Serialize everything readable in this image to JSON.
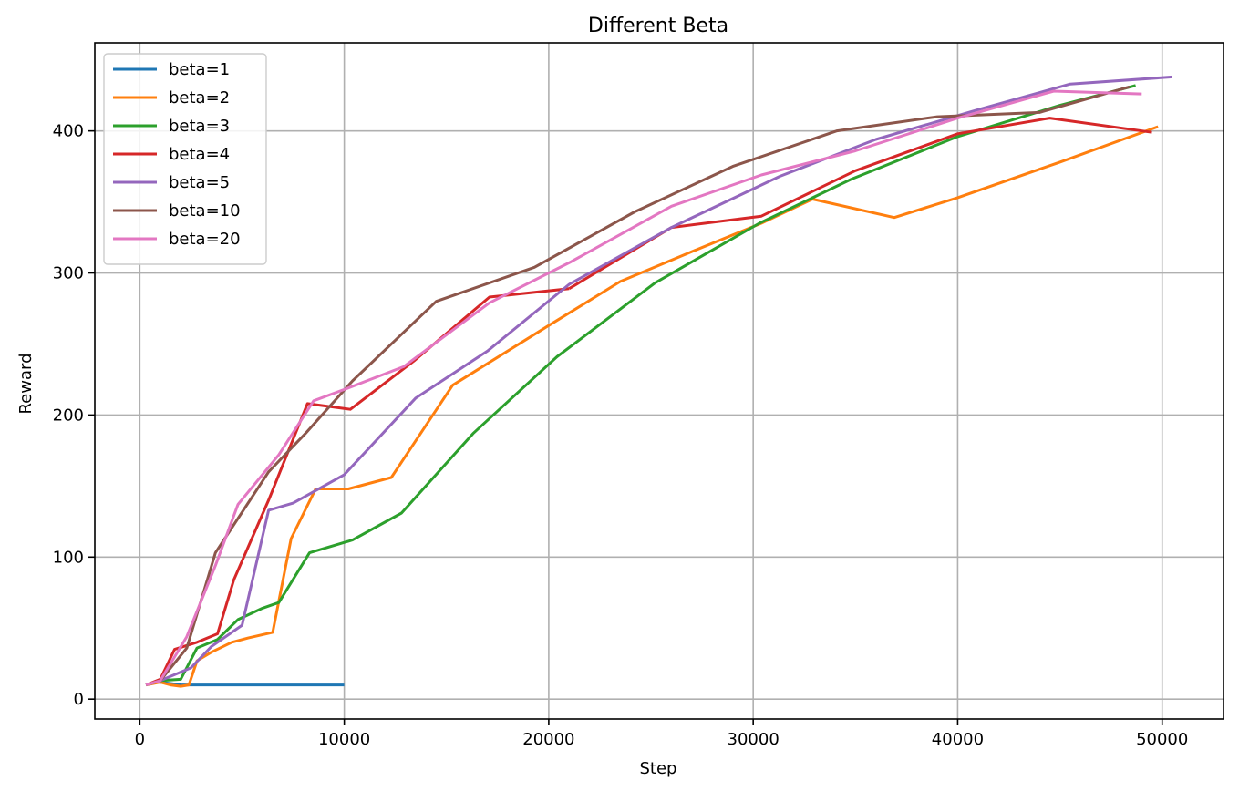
{
  "chart_data": {
    "type": "line",
    "title": "Different Beta",
    "xlabel": "Step",
    "ylabel": "Reward",
    "xlim": [
      -2200,
      53000
    ],
    "ylim": [
      -14,
      462
    ],
    "xticks": [
      0,
      10000,
      20000,
      30000,
      40000,
      50000
    ],
    "xtick_labels": [
      "0",
      "10000",
      "20000",
      "30000",
      "40000",
      "50000"
    ],
    "yticks": [
      0,
      100,
      200,
      300,
      400
    ],
    "ytick_labels": [
      "0",
      "100",
      "200",
      "300",
      "400"
    ],
    "grid": true,
    "legend_position": "top-left",
    "series": [
      {
        "name": "beta=1",
        "color": "#1f77b4",
        "x": [
          300,
          900,
          1500,
          2000,
          3000,
          4000,
          5000,
          6000,
          7000,
          8000,
          9000,
          10000
        ],
        "y": [
          10,
          12,
          11,
          10,
          10,
          10,
          10,
          10,
          10,
          10,
          10,
          10
        ]
      },
      {
        "name": "beta=2",
        "color": "#ff7f0e",
        "x": [
          300,
          1000,
          1500,
          2000,
          2400,
          2800,
          3500,
          4500,
          5300,
          6500,
          7400,
          8600,
          10200,
          12300,
          15300,
          20000,
          23500,
          27000,
          30400,
          32900,
          36900,
          40000,
          45000,
          49800
        ],
        "y": [
          10,
          12,
          10,
          9,
          10,
          27,
          33,
          40,
          43,
          47,
          113,
          148,
          148,
          156,
          221,
          263,
          294,
          315,
          335,
          352,
          339,
          353,
          378,
          403
        ]
      },
      {
        "name": "beta=3",
        "color": "#2ca02c",
        "x": [
          300,
          1000,
          2000,
          2800,
          3800,
          4800,
          6000,
          6800,
          8300,
          10400,
          12800,
          16300,
          20400,
          25200,
          30300,
          34800,
          40000,
          45000,
          48700
        ],
        "y": [
          10,
          13,
          14,
          36,
          42,
          56,
          64,
          68,
          103,
          112,
          131,
          187,
          241,
          293,
          335,
          366,
          396,
          418,
          432
        ]
      },
      {
        "name": "beta=4",
        "color": "#d62728",
        "x": [
          300,
          1000,
          1700,
          2800,
          3800,
          4600,
          6300,
          8200,
          10300,
          13400,
          17100,
          21000
        ],
        "y": [
          10,
          14,
          35,
          40,
          46,
          84,
          140,
          208,
          204,
          238,
          283,
          289
        ]
      },
      {
        "name": "beta=4",
        "color": "#d62728",
        "x": [
          21000,
          26000,
          30400,
          35000,
          40000,
          44500,
          49500
        ],
        "y": [
          289,
          332,
          340,
          372,
          398,
          409,
          399
        ]
      },
      {
        "name": "beta=5",
        "color": "#9467bd",
        "x": [
          300,
          1000,
          2500,
          3500,
          5000,
          6300,
          7500,
          10000,
          13500,
          17000,
          21000,
          26000,
          31300,
          36000,
          41000,
          45500,
          50500
        ],
        "y": [
          10,
          13,
          22,
          37,
          52,
          133,
          138,
          158,
          212,
          245,
          292,
          332,
          368,
          394,
          415,
          433,
          438
        ]
      },
      {
        "name": "beta=10",
        "color": "#8c564b",
        "x": [
          300,
          1000,
          2300,
          3700,
          6300,
          8100,
          10400,
          14500,
          19300,
          24200,
          29000,
          34100,
          39000,
          44000,
          48400
        ],
        "y": [
          10,
          13,
          36,
          103,
          160,
          187,
          224,
          280,
          304,
          343,
          375,
          400,
          410,
          413,
          431
        ]
      },
      {
        "name": "beta=20",
        "color": "#e377c2",
        "x": [
          300,
          1000,
          2300,
          3700,
          4800,
          6800,
          8500,
          10000,
          12900,
          17100,
          21100,
          26000,
          30400,
          35000,
          40000,
          44700,
          49000
        ],
        "y": [
          10,
          13,
          44,
          94,
          137,
          172,
          210,
          218,
          234,
          279,
          308,
          347,
          369,
          386,
          409,
          428,
          426
        ]
      }
    ]
  }
}
